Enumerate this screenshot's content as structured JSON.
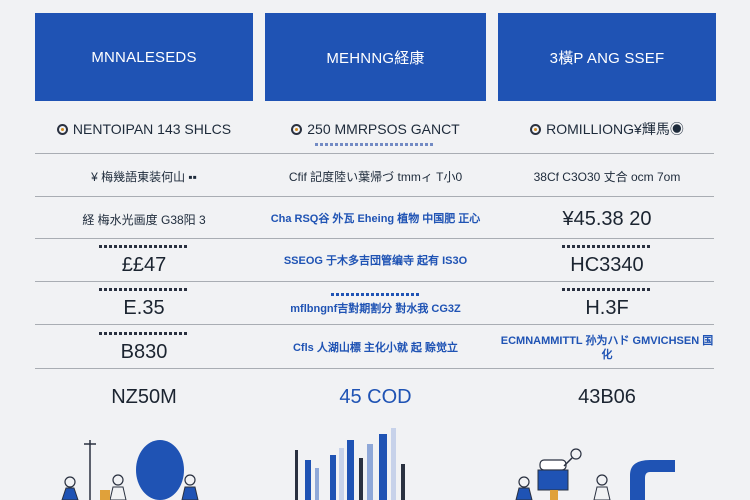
{
  "headers": {
    "col1": "MNNALESEDS",
    "col2": "MEHNNG経康",
    "col3": "3橫P ANG SSEF"
  },
  "subtitles": {
    "col1": "NENTOIPAN 143 SHLCS",
    "col2": "250 MMRPSOS GANCT",
    "col3": "ROMILLIONG¥輝馬◉"
  },
  "rows": [
    {
      "col1": "¥ 梅幾語東装何山 ▪▪",
      "col2": "Cfif 記度陸い葉帰づ tmmィ T小0",
      "col3": "38Cf C3O30 丈合 ocm 7om"
    },
    {
      "col1": "経 梅水光画度 G38阳 3",
      "col2": "Cha RSQ谷 外瓦 Eheing 植物 中国肥 正心",
      "col3": "¥45.38 20"
    },
    {
      "col1": "££47",
      "col2": "SSEOG 于木多吉団管编寺 起有 IS3O",
      "col3": "HC3340"
    },
    {
      "col1": "E.35",
      "col2": "mflbngnf吉對期割分 對水我 CG3Z",
      "col3": "H.3F"
    },
    {
      "col1": "B830",
      "col2": "Cfls 人湖山標 主化小就 起 赊觉立",
      "col3": "ECMNAMMITTL 孙为ハド GMVICHSEN 国化"
    }
  ],
  "totals": {
    "col1": "NZ50M",
    "col2": "45 COD",
    "col3": "43B06"
  },
  "colors": {
    "header_bg": "#1f53b4",
    "accent_blue": "#1f53b4",
    "background": "#f1f2f4",
    "rule": "#a9adb3"
  }
}
